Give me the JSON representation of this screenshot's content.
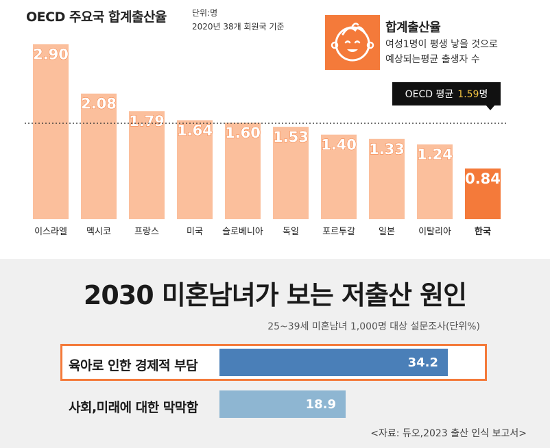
{
  "top": {
    "title": "OECD 주요국 합계출산율",
    "unit": "단위:명",
    "subtitle": "2020년 38개 회원국 기준",
    "info": {
      "title": "합계출산율",
      "line1": "여성1명이 평생 낳을 것으로",
      "line2": "예상되는평균 출생자 수",
      "icon": "baby-face-icon"
    },
    "average": {
      "label": "OECD 평균",
      "value": "1.59",
      "unit": "명"
    }
  },
  "chart_data": [
    {
      "type": "bar",
      "title": "OECD 주요국 합계출산율",
      "categories": [
        "이스라엘",
        "멕시코",
        "프랑스",
        "미국",
        "슬로베니아",
        "독일",
        "포르투갈",
        "일본",
        "이탈리아",
        "한국"
      ],
      "values": [
        2.9,
        2.08,
        1.79,
        1.64,
        1.6,
        1.53,
        1.4,
        1.33,
        1.24,
        0.84
      ],
      "value_labels": [
        "2.90",
        "2.08",
        "1.79",
        "1.64",
        "1.60",
        "1.53",
        "1.40",
        "1.33",
        "1.24",
        "0.84"
      ],
      "reference_line": 1.59,
      "ylim": [
        0,
        2.95
      ],
      "grid": false,
      "colors": {
        "default": "#fbbf9c",
        "highlight": "#f47a3a",
        "label": "#ffffff",
        "label_outline": "#f47a3a",
        "reference_line": "#333333"
      },
      "highlight_category": "한국"
    },
    {
      "type": "bar",
      "orientation": "horizontal",
      "title": "2030 미혼남녀가 보는 저출산 원인",
      "subtitle": "25~39세 미혼남녀 1,000명 대상 설문조사(단위%)",
      "categories": [
        "육아로 인한 경제적 부담",
        "사회,미래에 대한 막막함"
      ],
      "values": [
        34.2,
        18.9
      ],
      "value_labels": [
        "34.2",
        "18.9"
      ],
      "xlim": [
        0,
        40
      ],
      "colors": {
        "bar1": "#4a7fb8",
        "bar2": "#8eb6d2",
        "highlight_border": "#f47a3a"
      }
    }
  ],
  "bottom": {
    "title": "2030 미혼남녀가 보는 저출산 원인",
    "subtitle": "25~39세 미혼남녀 1,000명 대상 설문조사(단위%)",
    "rows": [
      {
        "label": "육아로 인한 경제적 부담",
        "value": "34.2"
      },
      {
        "label": "사회,미래에 대한 막막함",
        "value": "18.9"
      }
    ],
    "source": "<자료: 듀오,2023 출산 인식 보고서>"
  }
}
